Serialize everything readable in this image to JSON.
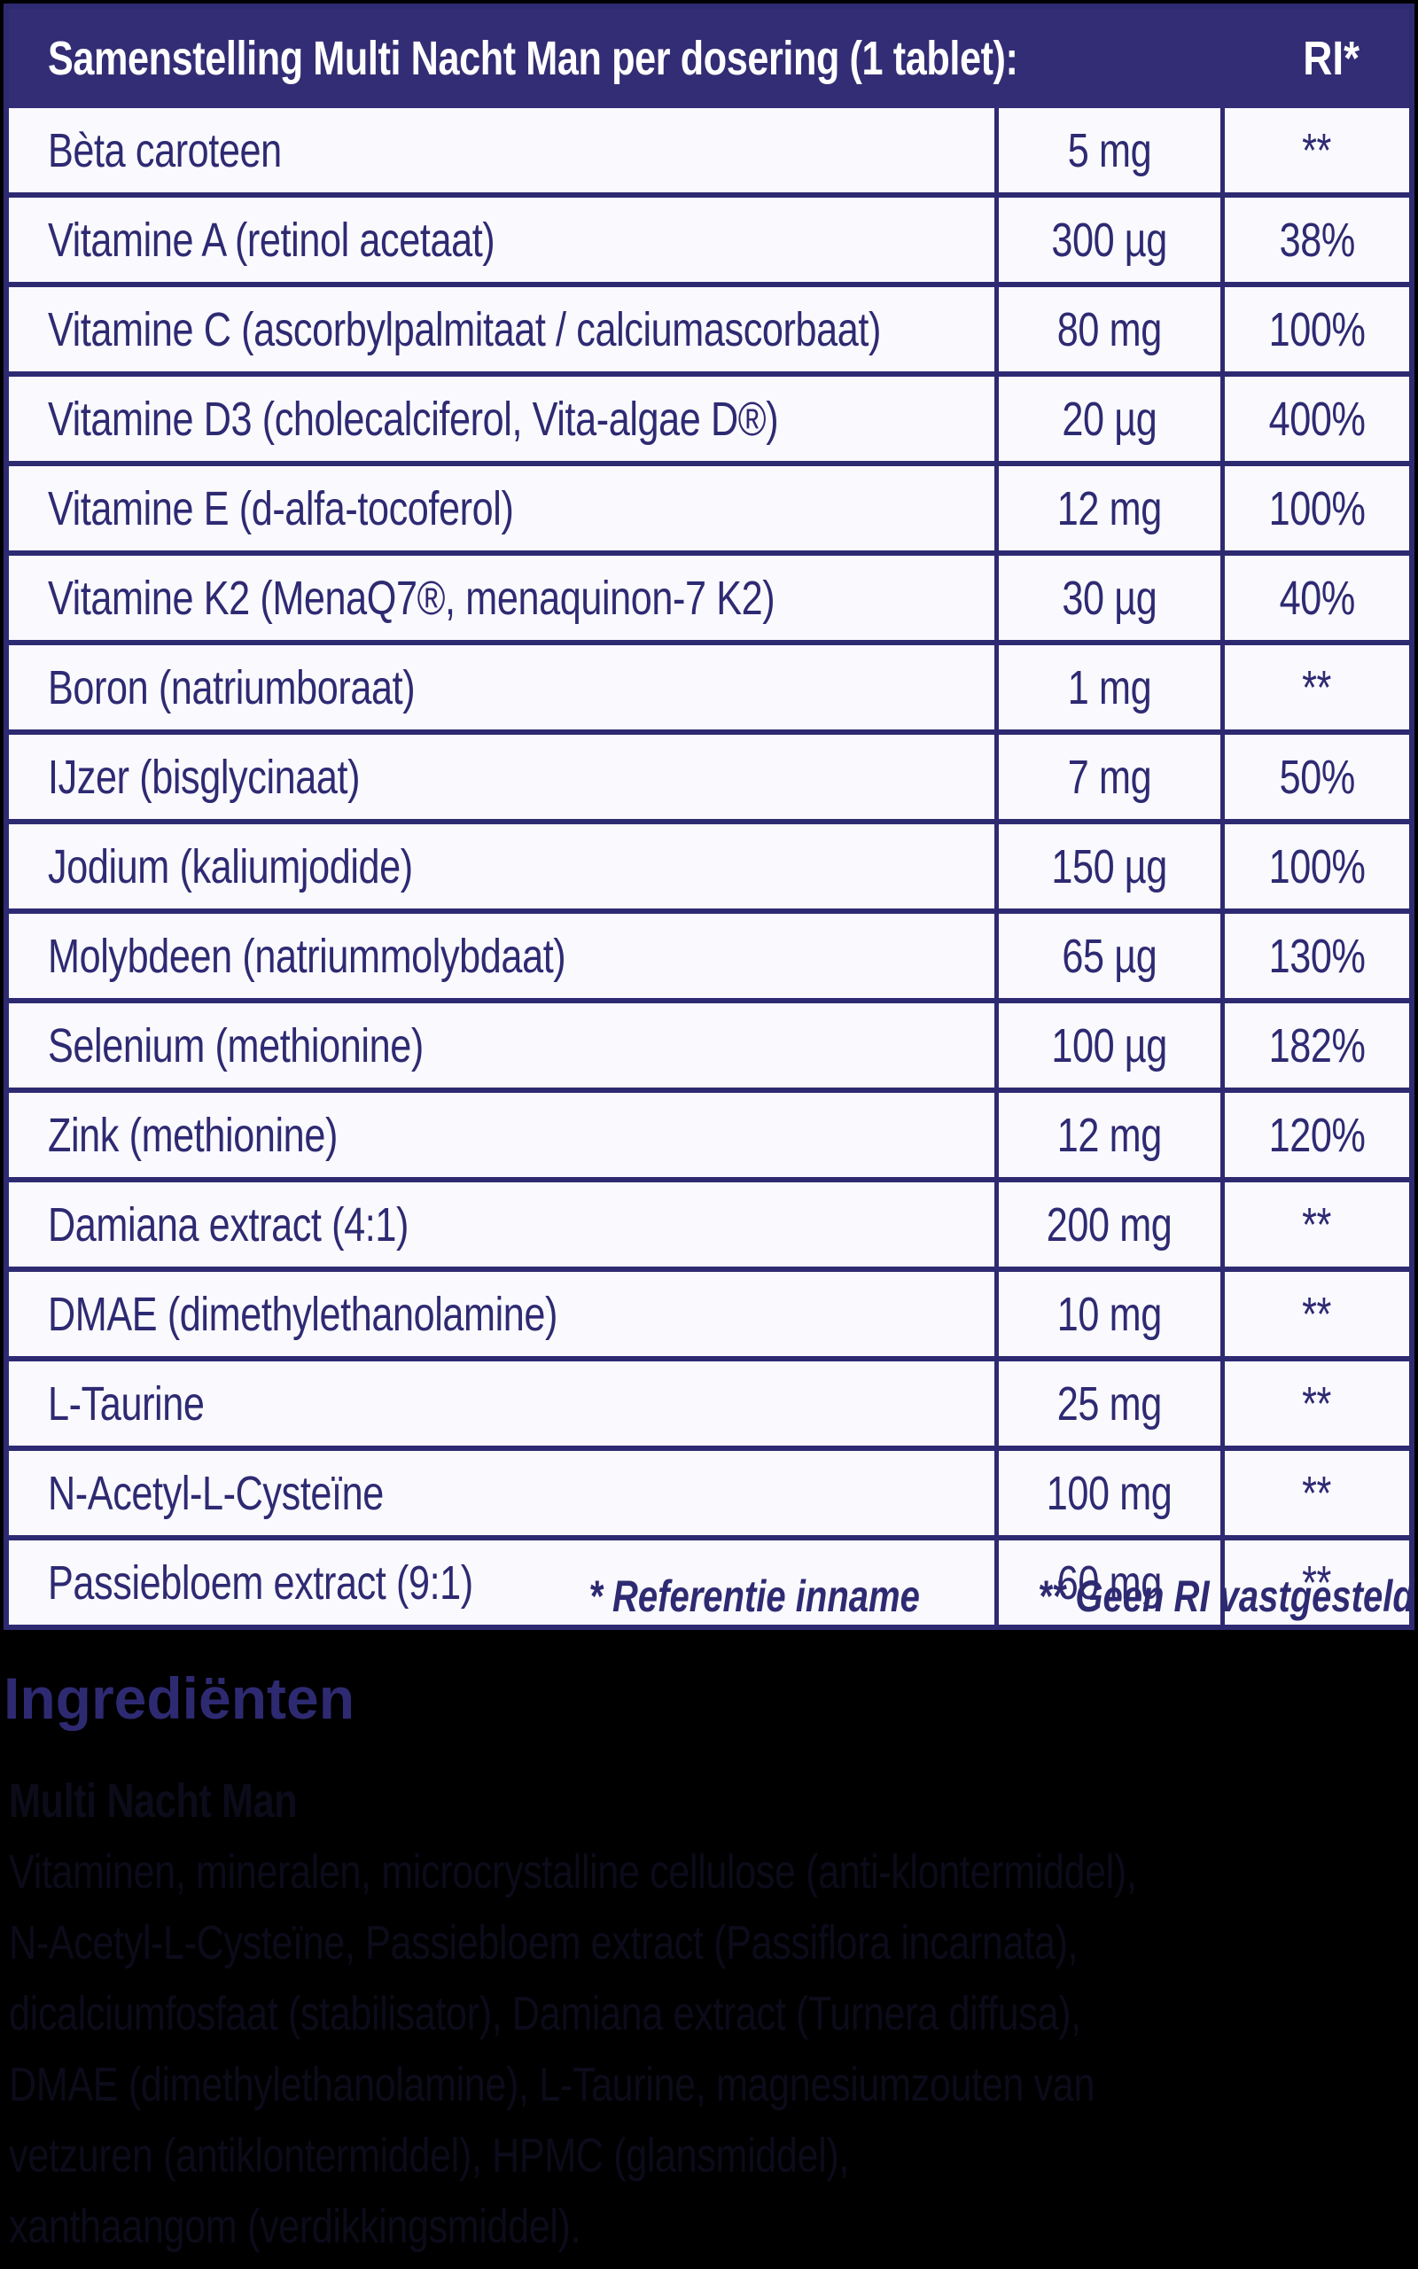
{
  "colors": {
    "accent_navy": "#2e2a72",
    "header_bg": "#332d75",
    "cell_bg": "#faf9fe",
    "page_bg": "#000000",
    "hidden_text": "#0b0b1a"
  },
  "header": {
    "title": "Samenstelling Multi Nacht Man per dosering (1 tablet):",
    "ri_label": "RI*"
  },
  "table": {
    "columns": [
      "ingredient",
      "amount",
      "ri"
    ],
    "rows": [
      {
        "name": "Bèta caroteen",
        "amount": "5 mg",
        "ri": "**"
      },
      {
        "name": "Vitamine A (retinol acetaat)",
        "amount": "300 µg",
        "ri": "38%"
      },
      {
        "name": "Vitamine C (ascorbylpalmitaat / calciumascorbaat)",
        "amount": "80 mg",
        "ri": "100%"
      },
      {
        "name": "Vitamine D3 (cholecalciferol, Vita-algae D®)",
        "amount": "20 µg",
        "ri": "400%"
      },
      {
        "name": "Vitamine E (d-alfa-tocoferol)",
        "amount": "12 mg",
        "ri": "100%"
      },
      {
        "name": "Vitamine K2 (MenaQ7®, menaquinon-7 K2)",
        "amount": "30 µg",
        "ri": "40%"
      },
      {
        "name": "Boron (natriumboraat)",
        "amount": "1 mg",
        "ri": "**"
      },
      {
        "name": "IJzer (bisglycinaat)",
        "amount": "7 mg",
        "ri": "50%"
      },
      {
        "name": "Jodium (kaliumjodide)",
        "amount": "150 µg",
        "ri": "100%"
      },
      {
        "name": "Molybdeen (natriummolybdaat)",
        "amount": "65 µg",
        "ri": "130%"
      },
      {
        "name": "Selenium (methionine)",
        "amount": "100 µg",
        "ri": "182%"
      },
      {
        "name": "Zink (methionine)",
        "amount": "12 mg",
        "ri": "120%"
      },
      {
        "name": "Damiana extract (4:1)",
        "amount": "200 mg",
        "ri": "**"
      },
      {
        "name": "DMAE (dimethylethanolamine)",
        "amount": "10 mg",
        "ri": "**"
      },
      {
        "name": "L-Taurine",
        "amount": "25 mg",
        "ri": "**"
      },
      {
        "name": "N-Acetyl-L-Cysteïne",
        "amount": "100 mg",
        "ri": "**"
      },
      {
        "name": "Passiebloem extract (9:1)",
        "amount": "60 mg",
        "ri": "**"
      }
    ]
  },
  "footnote": {
    "reference": "* Referentie inname",
    "no_ri": "** Geen RI vastgesteld"
  },
  "ingredients": {
    "heading": "Ingrediënten",
    "intro": "Multi Nacht Man",
    "lines": [
      "Vitaminen, mineralen, microcrystalline cellulose (anti-klontermiddel),",
      "N-Acetyl-L-Cysteïne, Passiebloem extract (Passiflora incarnata),",
      "dicalciumfosfaat (stabilisator), Damiana extract (Turnera diffusa),",
      "DMAE (dimethylethanolamine), L-Taurine, magnesiumzouten van",
      "vetzuren (antiklontermiddel), HPMC (glansmiddel),",
      "xanthaangom (verdikkingsmiddel)."
    ]
  }
}
